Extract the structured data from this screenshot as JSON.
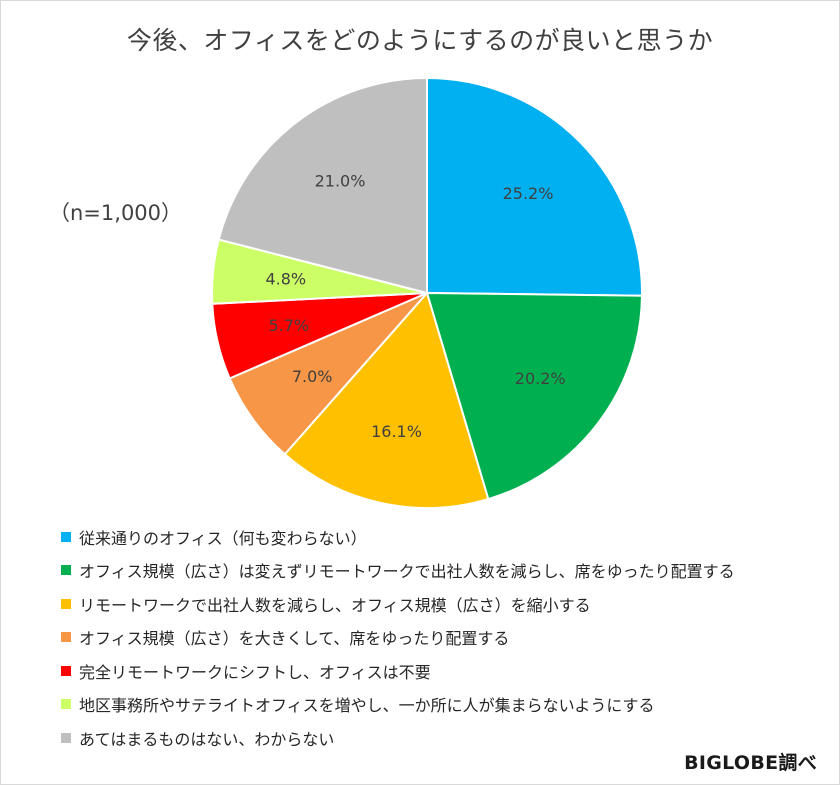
{
  "chart_data": {
    "type": "pie",
    "title": "今後、オフィスをどのようにするのが良いと思うか",
    "sample_note": "（n=1,000）",
    "start_angle_deg": 0,
    "direction": "clockwise",
    "slices": [
      {
        "label": "従来通りのオフィス（何も変わらない）",
        "value": 25.2,
        "display": "25.2%",
        "color": "#00b0f0"
      },
      {
        "label": "オフィス規模（広さ）は変えずリモートワークで出社人数を減らし、席をゆったり配置する",
        "value": 20.2,
        "display": "20.2%",
        "color": "#00b050"
      },
      {
        "label": "リモートワークで出社人数を減らし、オフィス規模（広さ）を縮小する",
        "value": 16.1,
        "display": "16.1%",
        "color": "#ffc000"
      },
      {
        "label": "オフィス規模（広さ）を大きくして、席をゆったり配置する",
        "value": 7.0,
        "display": "7.0%",
        "color": "#f79646"
      },
      {
        "label": "完全リモートワークにシフトし、オフィスは不要",
        "value": 5.7,
        "display": "5.7%",
        "color": "#ff0000"
      },
      {
        "label": "地区事務所やサテライトオフィスを増やし、一か所に人が集まらないようにする",
        "value": 4.8,
        "display": "4.8%",
        "color": "#ccff66"
      },
      {
        "label": "あてはまるものはない、わからない",
        "value": 21.0,
        "display": "21.0%",
        "color": "#bfbfbf"
      }
    ],
    "legend_position": "bottom-left"
  },
  "source": "BIGLOBE調べ"
}
